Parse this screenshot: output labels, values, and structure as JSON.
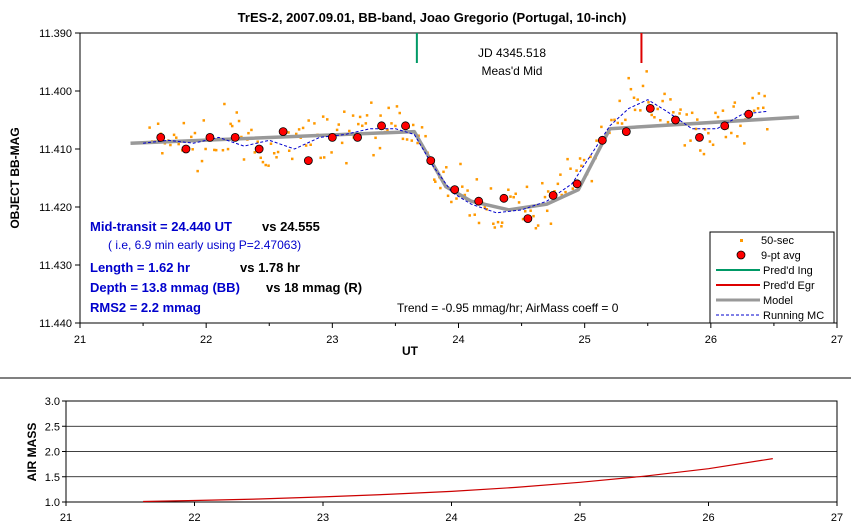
{
  "chart_data": [
    {
      "type": "scatter",
      "title": "TrES-2, 2007.09.01, BB-band, Joao Gregorio (Portugal, 10-inch)",
      "xlabel": "UT",
      "ylabel": "OBJECT BB-MAG",
      "xlim": [
        21,
        27
      ],
      "ylim": [
        11.44,
        11.39
      ],
      "y_inverted": true,
      "x_ticks": [
        "21",
        "22",
        "23",
        "24",
        "25",
        "26",
        "27"
      ],
      "y_ticks": [
        "11.390",
        "11.400",
        "11.410",
        "11.420",
        "11.430",
        "11.440"
      ],
      "legend_position": "bottom-right",
      "legend": [
        "50-sec",
        "9-pt avg",
        "Pred'd Ing",
        "Pred'd Egr",
        "Model",
        "Running MC"
      ],
      "series": [
        {
          "name": "9-pt avg",
          "color": "#ff0000",
          "x": [
            21.64,
            21.84,
            22.03,
            22.23,
            22.42,
            22.61,
            22.81,
            23.0,
            23.2,
            23.39,
            23.58,
            23.78,
            23.97,
            24.16,
            24.36,
            24.55,
            24.75,
            24.94,
            25.14,
            25.33,
            25.52,
            25.72,
            25.91,
            26.11,
            26.3
          ],
          "y": [
            11.408,
            11.41,
            11.408,
            11.408,
            11.41,
            11.407,
            11.412,
            11.408,
            11.408,
            11.406,
            11.406,
            11.412,
            11.417,
            11.419,
            11.4185,
            11.422,
            11.418,
            11.416,
            11.4085,
            11.407,
            11.403,
            11.405,
            11.408,
            11.406,
            11.404
          ]
        },
        {
          "name": "Model",
          "color": "#999999",
          "x": [
            21.4,
            23.65,
            23.9,
            24.1,
            24.4,
            24.7,
            24.95,
            25.2,
            26.7
          ],
          "y": [
            11.409,
            11.407,
            11.4165,
            11.419,
            11.4205,
            11.4195,
            11.417,
            11.4065,
            11.4045
          ]
        },
        {
          "name": "Running MC",
          "color": "#0000cc",
          "x": [
            21.5,
            21.7,
            21.9,
            22.1,
            22.3,
            22.5,
            22.7,
            22.9,
            23.1,
            23.3,
            23.5,
            23.65,
            23.8,
            23.95,
            24.1,
            24.3,
            24.5,
            24.7,
            24.9,
            25.05,
            25.2,
            25.35,
            25.5,
            25.65,
            25.85,
            26.05,
            26.25,
            26.45
          ],
          "y": [
            11.409,
            11.4085,
            11.409,
            11.408,
            11.4095,
            11.4085,
            11.41,
            11.408,
            11.4075,
            11.4065,
            11.4065,
            11.4075,
            11.413,
            11.4175,
            11.4195,
            11.421,
            11.4205,
            11.419,
            11.416,
            11.411,
            11.406,
            11.403,
            11.4015,
            11.4035,
            11.4065,
            11.4065,
            11.404,
            11.4035
          ]
        }
      ],
      "annotations": {
        "jd": "JD 4345.518",
        "meas_mid": "Meas'd Mid",
        "mid_transit": "Mid-transit = 24.440 UT",
        "mid_transit_vs": "vs 24.555",
        "early_note": "( i.e, 6.9 min early using P=2.47063)",
        "length": "Length = 1.62 hr",
        "length_vs": "vs 1.78 hr",
        "depth": "Depth = 13.8 mmag (BB)",
        "depth_vs": "vs 18 mmag (R)",
        "rms": "RMS2 = 2.2 mmag",
        "trend": "Trend = -0.95 mmag/hr; AirMass coeff = 0"
      },
      "markers": {
        "predicted_ingress_ut": 23.67,
        "predicted_egress_ut": 25.45,
        "ingress_color": "#009966",
        "egress_color": "#dd0000"
      }
    },
    {
      "type": "line",
      "ylabel": "AIR MASS",
      "xlim": [
        21,
        27
      ],
      "ylim": [
        1.0,
        3.0
      ],
      "x_ticks": [
        "21",
        "22",
        "23",
        "24",
        "25",
        "26",
        "27"
      ],
      "y_ticks": [
        "1.0",
        "1.5",
        "2.0",
        "2.5",
        "3.0"
      ],
      "grid": true,
      "series": [
        {
          "color": "#cc0000",
          "x": [
            21.6,
            22.0,
            22.5,
            23.0,
            23.5,
            24.0,
            24.5,
            25.0,
            25.5,
            26.0,
            26.5
          ],
          "y": [
            1.01,
            1.03,
            1.06,
            1.1,
            1.15,
            1.21,
            1.29,
            1.39,
            1.51,
            1.66,
            1.86
          ]
        }
      ]
    }
  ]
}
